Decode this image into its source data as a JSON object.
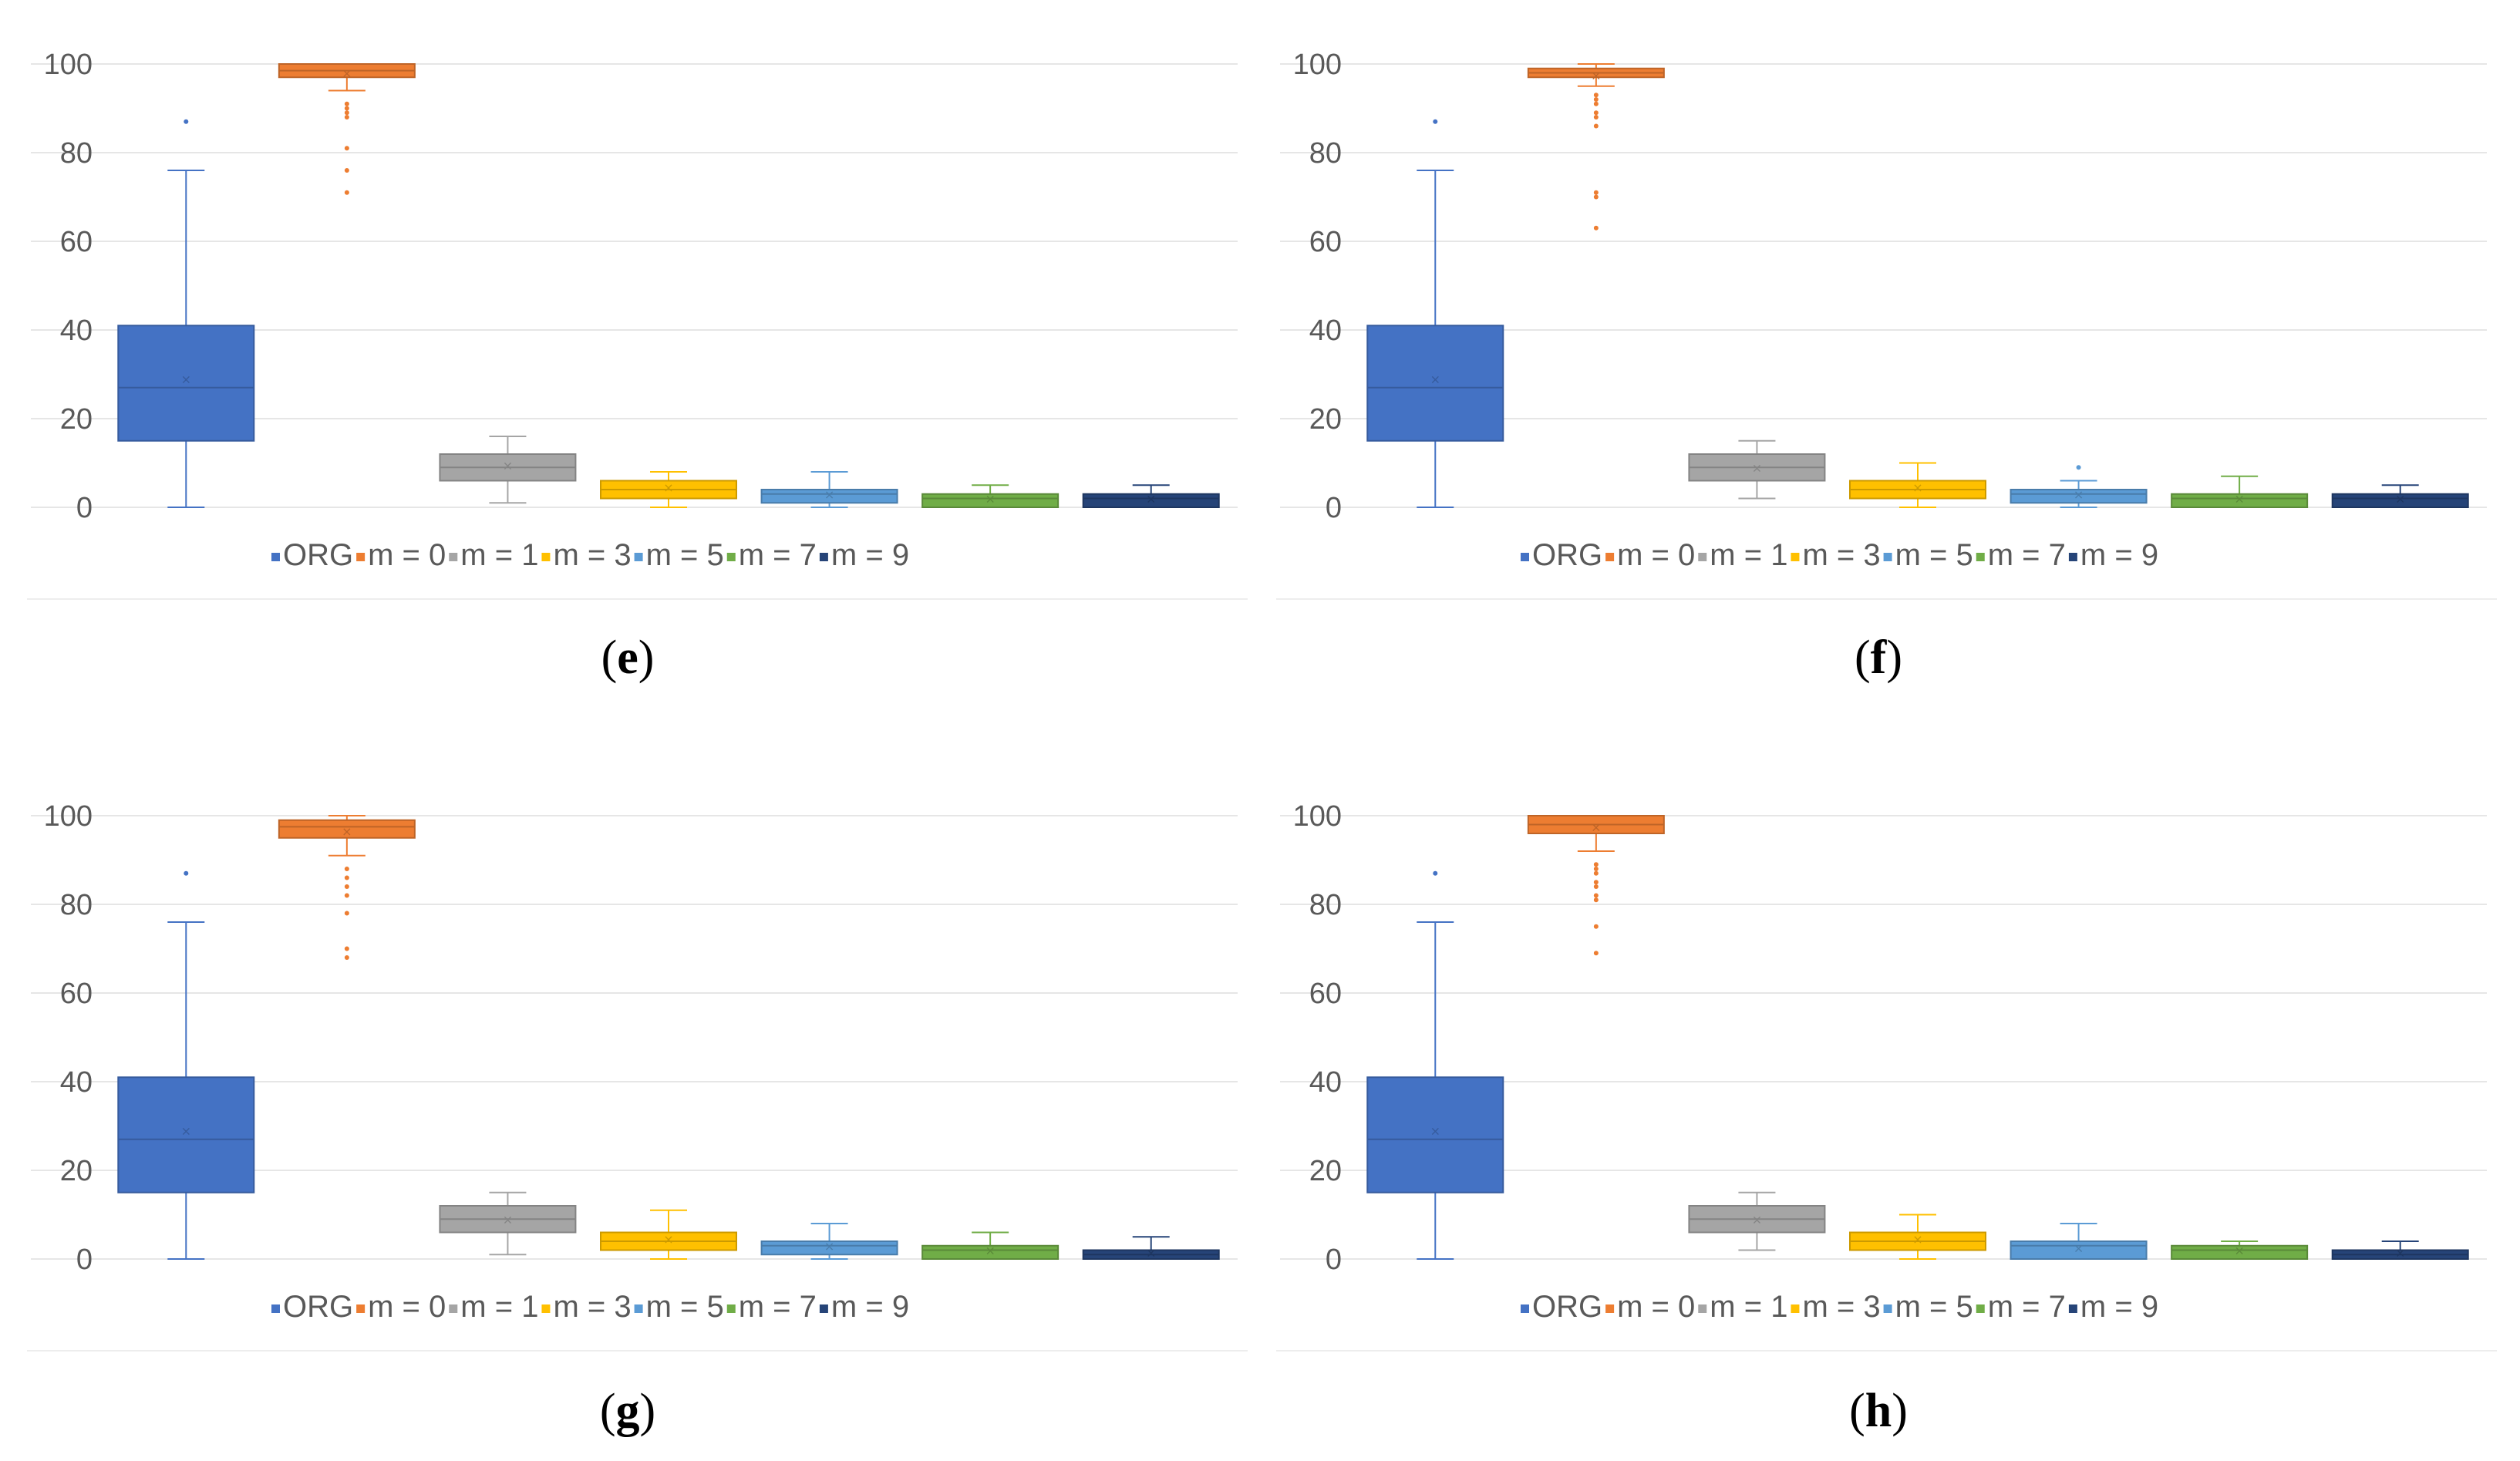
{
  "colors": {
    "ORG": "#4472C4",
    "m = 0": "#ED7D31",
    "m = 1": "#A5A5A5",
    "m = 3": "#FFC000",
    "m = 5": "#5B9BD5",
    "m = 7": "#70AD47",
    "m = 9": "#264478",
    "grid": "#E6E6E6",
    "text": "#595959"
  },
  "chart_data": [
    {
      "type": "box",
      "panel": "e",
      "caption_letter": "e",
      "ylim": [
        0,
        100
      ],
      "yticks": [
        "0",
        "20",
        "40",
        "60",
        "80",
        "100"
      ],
      "legend_position": "bottom",
      "series": [
        {
          "name": "ORG",
          "min": 0,
          "q1": 15,
          "median": 27,
          "mean": 29,
          "q3": 41,
          "max": 76,
          "outliers": [
            87
          ]
        },
        {
          "name": "m = 0",
          "min": 94,
          "q1": 97,
          "median": 98.5,
          "mean": 98,
          "q3": 100,
          "max": 100,
          "outliers": [
            71,
            76,
            81,
            88,
            89,
            90,
            91
          ]
        },
        {
          "name": "m = 1",
          "min": 1,
          "q1": 6,
          "median": 9,
          "mean": 9.5,
          "q3": 12,
          "max": 16,
          "outliers": []
        },
        {
          "name": "m = 3",
          "min": 0,
          "q1": 2,
          "median": 4,
          "mean": 4.5,
          "q3": 6,
          "max": 8,
          "outliers": []
        },
        {
          "name": "m = 5",
          "min": 0,
          "q1": 1,
          "median": 3,
          "mean": 3,
          "q3": 4,
          "max": 8,
          "outliers": []
        },
        {
          "name": "m = 7",
          "min": 0,
          "q1": 0,
          "median": 2,
          "mean": 2,
          "q3": 3,
          "max": 5,
          "outliers": []
        },
        {
          "name": "m = 9",
          "min": 0,
          "q1": 0,
          "median": 2,
          "mean": 2,
          "q3": 3,
          "max": 5,
          "outliers": []
        }
      ]
    },
    {
      "type": "box",
      "panel": "f",
      "caption_letter": "f",
      "ylim": [
        0,
        100
      ],
      "yticks": [
        "0",
        "20",
        "40",
        "60",
        "80",
        "100"
      ],
      "legend_position": "bottom",
      "series": [
        {
          "name": "ORG",
          "min": 0,
          "q1": 15,
          "median": 27,
          "mean": 29,
          "q3": 41,
          "max": 76,
          "outliers": [
            87
          ]
        },
        {
          "name": "m = 0",
          "min": 95,
          "q1": 97,
          "median": 98,
          "mean": 97.5,
          "q3": 99,
          "max": 100,
          "outliers": [
            63,
            70,
            71,
            86,
            88,
            89,
            91,
            92,
            93
          ]
        },
        {
          "name": "m = 1",
          "min": 2,
          "q1": 6,
          "median": 9,
          "mean": 9,
          "q3": 12,
          "max": 15,
          "outliers": []
        },
        {
          "name": "m = 3",
          "min": 0,
          "q1": 2,
          "median": 4,
          "mean": 4.5,
          "q3": 6,
          "max": 10,
          "outliers": []
        },
        {
          "name": "m = 5",
          "min": 0,
          "q1": 1,
          "median": 3,
          "mean": 3,
          "q3": 4,
          "max": 6,
          "outliers": [
            9
          ]
        },
        {
          "name": "m = 7",
          "min": 0,
          "q1": 0,
          "median": 2,
          "mean": 2,
          "q3": 3,
          "max": 7,
          "outliers": []
        },
        {
          "name": "m = 9",
          "min": 0,
          "q1": 0,
          "median": 2,
          "mean": 2,
          "q3": 3,
          "max": 5,
          "outliers": []
        }
      ]
    },
    {
      "type": "box",
      "panel": "g",
      "caption_letter": "g",
      "ylim": [
        0,
        100
      ],
      "yticks": [
        "0",
        "20",
        "40",
        "60",
        "80",
        "100"
      ],
      "legend_position": "bottom",
      "series": [
        {
          "name": "ORG",
          "min": 0,
          "q1": 15,
          "median": 27,
          "mean": 29,
          "q3": 41,
          "max": 76,
          "outliers": [
            87
          ]
        },
        {
          "name": "m = 0",
          "min": 91,
          "q1": 95,
          "median": 97.5,
          "mean": 96.5,
          "q3": 99,
          "max": 100,
          "outliers": [
            68,
            70,
            78,
            82,
            84,
            86,
            88
          ]
        },
        {
          "name": "m = 1",
          "min": 1,
          "q1": 6,
          "median": 9,
          "mean": 9,
          "q3": 12,
          "max": 15,
          "outliers": []
        },
        {
          "name": "m = 3",
          "min": 0,
          "q1": 2,
          "median": 4,
          "mean": 4.5,
          "q3": 6,
          "max": 11,
          "outliers": []
        },
        {
          "name": "m = 5",
          "min": 0,
          "q1": 1,
          "median": 3,
          "mean": 3,
          "q3": 4,
          "max": 8,
          "outliers": []
        },
        {
          "name": "m = 7",
          "min": 0,
          "q1": 0,
          "median": 2,
          "mean": 2,
          "q3": 3,
          "max": 6,
          "outliers": []
        },
        {
          "name": "m = 9",
          "min": 0,
          "q1": 0,
          "median": 1,
          "mean": 1.5,
          "q3": 2,
          "max": 5,
          "outliers": []
        }
      ]
    },
    {
      "type": "box",
      "panel": "h",
      "caption_letter": "h",
      "ylim": [
        0,
        100
      ],
      "yticks": [
        "0",
        "20",
        "40",
        "60",
        "80",
        "100"
      ],
      "legend_position": "bottom",
      "series": [
        {
          "name": "ORG",
          "min": 0,
          "q1": 15,
          "median": 27,
          "mean": 29,
          "q3": 41,
          "max": 76,
          "outliers": [
            87
          ]
        },
        {
          "name": "m = 0",
          "min": 92,
          "q1": 96,
          "median": 98,
          "mean": 97.5,
          "q3": 100,
          "max": 100,
          "outliers": [
            69,
            75,
            81,
            82,
            84,
            85,
            87,
            88,
            89
          ]
        },
        {
          "name": "m = 1",
          "min": 2,
          "q1": 6,
          "median": 9,
          "mean": 9,
          "q3": 12,
          "max": 15,
          "outliers": []
        },
        {
          "name": "m = 3",
          "min": 0,
          "q1": 2,
          "median": 4,
          "mean": 4.5,
          "q3": 6,
          "max": 10,
          "outliers": []
        },
        {
          "name": "m = 5",
          "min": 0,
          "q1": 0,
          "median": 3,
          "mean": 2.5,
          "q3": 4,
          "max": 8,
          "outliers": []
        },
        {
          "name": "m = 7",
          "min": 0,
          "q1": 0,
          "median": 2,
          "mean": 2,
          "q3": 3,
          "max": 4,
          "outliers": []
        },
        {
          "name": "m = 9",
          "min": 0,
          "q1": 0,
          "median": 1,
          "mean": 1.5,
          "q3": 2,
          "max": 4,
          "outliers": []
        }
      ]
    }
  ]
}
